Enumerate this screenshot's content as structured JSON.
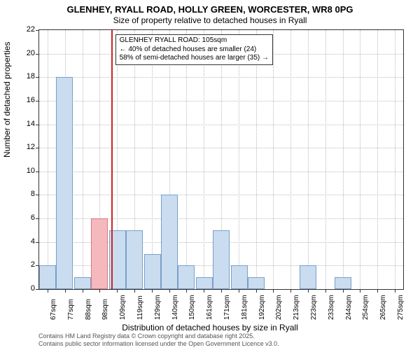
{
  "title_main": "GLENHEY, RYALL ROAD, HOLLY GREEN, WORCESTER, WR8 0PG",
  "title_sub": "Size of property relative to detached houses in Ryall",
  "ylabel": "Number of detached properties",
  "xlabel": "Distribution of detached houses by size in Ryall",
  "footer_line1": "Contains HM Land Registry data © Crown copyright and database right 2025.",
  "footer_line2": "Contains public sector information licensed under the Open Government Licence v3.0.",
  "chart": {
    "type": "histogram",
    "x_start": 62,
    "x_end": 280,
    "ylim": [
      0,
      22
    ],
    "ytick_step": 2,
    "xtick_step": 10.4,
    "xtick_first": 67,
    "xtick_unit": "sqm",
    "background_color": "#ffffff",
    "grid_color": "#bbbbbb",
    "axis_color": "#333333",
    "bar_fill": "#cadcf0",
    "bar_border": "#7a9fc9",
    "highlight_fill": "#f5b8bd",
    "highlight_border": "#d67a82",
    "marker_color": "#cc2222",
    "marker_x": 105,
    "bars": [
      {
        "x": 62,
        "count": 2
      },
      {
        "x": 72,
        "count": 18
      },
      {
        "x": 83,
        "count": 1
      },
      {
        "x": 93,
        "count": 6,
        "highlight": true
      },
      {
        "x": 104,
        "count": 5
      },
      {
        "x": 114,
        "count": 5
      },
      {
        "x": 125,
        "count": 3
      },
      {
        "x": 135,
        "count": 8
      },
      {
        "x": 145,
        "count": 2
      },
      {
        "x": 156,
        "count": 1
      },
      {
        "x": 166,
        "count": 5
      },
      {
        "x": 177,
        "count": 2
      },
      {
        "x": 187,
        "count": 1
      },
      {
        "x": 197,
        "count": 0
      },
      {
        "x": 208,
        "count": 0
      },
      {
        "x": 218,
        "count": 2
      },
      {
        "x": 228,
        "count": 0
      },
      {
        "x": 239,
        "count": 1
      },
      {
        "x": 249,
        "count": 0
      },
      {
        "x": 260,
        "count": 0
      },
      {
        "x": 270,
        "count": 0
      }
    ],
    "annotation": {
      "line1": "GLENHEY RYALL ROAD: 105sqm",
      "line2": "← 40% of detached houses are smaller (24)",
      "line3": "58% of semi-detached houses are larger (35) →",
      "fontsize": 10
    }
  }
}
